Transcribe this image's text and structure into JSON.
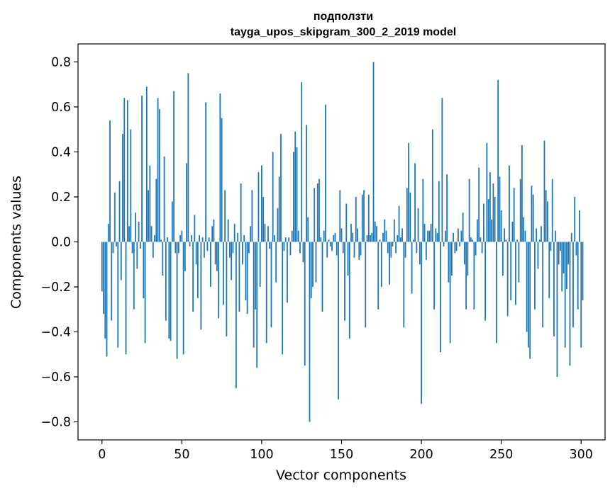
{
  "chart_data": {
    "type": "bar",
    "title_line1": "подползти",
    "title_line2": "tayga_upos_skipgram_300_2_2019 model",
    "xlabel": "Vector components",
    "ylabel": "Components values",
    "xlim": [
      -15,
      315
    ],
    "ylim": [
      -0.88,
      0.88
    ],
    "xticks": [
      0,
      50,
      100,
      150,
      200,
      250,
      300
    ],
    "yticks": [
      -0.8,
      -0.6,
      -0.4,
      -0.2,
      0.0,
      0.2,
      0.4,
      0.6,
      0.8
    ],
    "ytick_labels": [
      "−0.8",
      "−0.6",
      "−0.4",
      "−0.2",
      "0.0",
      "0.2",
      "0.4",
      "0.6",
      "0.8"
    ],
    "grid": false,
    "bar_color": "#1f77b4",
    "values": [
      -0.22,
      -0.32,
      -0.43,
      -0.51,
      0.08,
      0.54,
      -0.35,
      -0.05,
      0.22,
      -0.02,
      -0.47,
      0.27,
      -0.17,
      0.48,
      0.64,
      -0.5,
      0.63,
      0.07,
      0.5,
      -0.05,
      -0.3,
      0.13,
      -0.12,
      0.09,
      -0.03,
      0.65,
      -0.25,
      -0.45,
      0.69,
      0.23,
      0.34,
      0.07,
      -0.07,
      0.03,
      0.28,
      0.64,
      0.59,
      0.01,
      -0.15,
      0.38,
      -0.35,
      0.02,
      -0.43,
      -0.44,
      0.18,
      0.67,
      -0.05,
      -0.52,
      -0.05,
      0.03,
      0.05,
      -0.5,
      -0.13,
      0.35,
      0.75,
      -0.02,
      0.03,
      -0.31,
      0.12,
      -0.1,
      -0.25,
      0.03,
      -0.39,
      0.02,
      -0.07,
      0.62,
      -0.04,
      0.02,
      -0.2,
      0.07,
      0.1,
      -0.1,
      -0.13,
      -0.34,
      0.66,
      0.55,
      -0.28,
      0.23,
      -0.42,
      0.1,
      -0.07,
      -0.17,
      -0.05,
      0.08,
      -0.65,
      0.04,
      -0.31,
      0.26,
      -0.1,
      0.03,
      -0.26,
      -0.32,
      -0.05,
      0.07,
      0.23,
      -0.47,
      -0.3,
      -0.56,
      0.31,
      -0.2,
      0.34,
      0.2,
      0.08,
      -0.45,
      0.07,
      -0.03,
      -0.38,
      0.4,
      0.03,
      -0.18,
      0.15,
      0.29,
      0.48,
      -0.5,
      -0.04,
      0.02,
      -0.27,
      0.02,
      -0.06,
      0.05,
      0.4,
      0.49,
      0.42,
      0.05,
      -0.05,
      0.71,
      -0.09,
      -0.55,
      0.52,
      0.11,
      -0.8,
      -0.25,
      -0.2,
      0.24,
      -0.18,
      0.26,
      0.28,
      0.02,
      -0.31,
      0.05,
      0.61,
      -0.07,
      0.01,
      -0.02,
      -0.04,
      0.03,
      0.04,
      -0.06,
      -0.7,
      0.23,
      0.06,
      -0.05,
      -0.35,
      0.17,
      -0.15,
      -0.43,
      0.08,
      0.04,
      -0.07,
      0.2,
      0.06,
      -0.08,
      -0.06,
      0.21,
      0.23,
      -0.38,
      0.03,
      0.21,
      0.03,
      0.04,
      0.8,
      0.09,
      0.07,
      -0.3,
      0.01,
      -0.2,
      0.04,
      0.1,
      0.05,
      -0.05,
      -0.19,
      -0.07,
      -0.02,
      0.1,
      -0.05,
      0.03,
      0.16,
      0.02,
      0.06,
      -0.38,
      -0.07,
      0.24,
      0.44,
      0.22,
      -0.23,
      0.01,
      0.35,
      -0.05,
      0.15,
      -0.1,
      -0.72,
      0.28,
      0.08,
      -0.08,
      0.05,
      0.05,
      0.08,
      0.5,
      -0.3,
      0.06,
      0.04,
      0.27,
      -0.49,
      0.64,
      -0.02,
      0.05,
      0.3,
      -0.18,
      -0.45,
      -0.15,
      0.04,
      -0.05,
      -0.04,
      0.06,
      -0.02,
      0.05,
      0.13,
      -0.1,
      -0.3,
      -0.15,
      0.28,
      0.02,
      0.01,
      -0.3,
      -0.06,
      0.1,
      0.33,
      0.02,
      -0.05,
      0.17,
      -0.35,
      0.44,
      0.19,
      0.31,
      0.1,
      0.26,
      0.2,
      -0.45,
      0.72,
      0.29,
      0.14,
      -0.15,
      0.06,
      0.01,
      -0.33,
      0.34,
      -0.26,
      0.09,
      0.24,
      -0.28,
      0.01,
      -0.18,
      0.28,
      0.43,
      0.11,
      0.05,
      -0.4,
      -0.47,
      -0.52,
      0.25,
      0.21,
      -0.3,
      0.06,
      -0.12,
      0.01,
      0.07,
      -0.38,
      0.45,
      0.23,
      0.18,
      -0.25,
      -0.04,
      0.28,
      -0.42,
      0.05,
      -0.6,
      -0.1,
      -0.04,
      -0.22,
      -0.14,
      -0.47,
      -0.21,
      -0.1,
      -0.55,
      0.04,
      -0.38,
      0.2,
      -0.06,
      -0.3,
      0.14,
      -0.47,
      -0.26
    ]
  }
}
